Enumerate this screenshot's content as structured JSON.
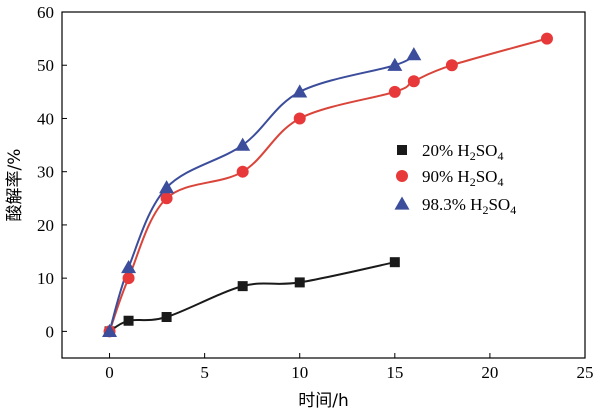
{
  "chart_data": {
    "type": "scatter",
    "title": "",
    "xlabel": "时间/h",
    "ylabel": "酸解率/%",
    "xlim": [
      -2.5,
      25
    ],
    "ylim": [
      -5,
      60
    ],
    "xticks": [
      0,
      5,
      10,
      15,
      20,
      25
    ],
    "yticks": [
      0,
      10,
      20,
      30,
      40,
      50,
      60
    ],
    "xtick_labels": [
      "0",
      "5",
      "10",
      "15",
      "20",
      "25"
    ],
    "ytick_labels": [
      "0",
      "10",
      "20",
      "30",
      "40",
      "50",
      "60"
    ],
    "grid": false,
    "legend_position": "right",
    "series": [
      {
        "name": "20% H2SO4",
        "legend_parts": [
          "20% H",
          "2",
          "SO",
          "4"
        ],
        "marker": "square",
        "color": "#1a1a1a",
        "line_color": "#1a1a1a",
        "x": [
          0,
          1,
          3,
          7,
          10,
          15
        ],
        "y": [
          0,
          2,
          2.7,
          8.5,
          9.2,
          13
        ]
      },
      {
        "name": "90% H2SO4",
        "legend_parts": [
          "90% H",
          "2",
          "SO",
          "4"
        ],
        "marker": "circle",
        "color": "#e8393a",
        "line_color": "#d9453a",
        "x": [
          0,
          1,
          3,
          7,
          10,
          15,
          16,
          18,
          23
        ],
        "y": [
          0,
          10,
          25,
          30,
          40,
          45,
          47,
          50,
          55
        ]
      },
      {
        "name": "98.3% H2SO4",
        "legend_parts": [
          "98.3% H",
          "2",
          "SO",
          "4"
        ],
        "marker": "triangle",
        "color": "#3b4d9b",
        "line_color": "#3b4d9b",
        "x": [
          0,
          1,
          3,
          7,
          10,
          15,
          16
        ],
        "y": [
          0,
          12,
          27,
          35,
          45,
          50,
          52
        ]
      }
    ]
  }
}
